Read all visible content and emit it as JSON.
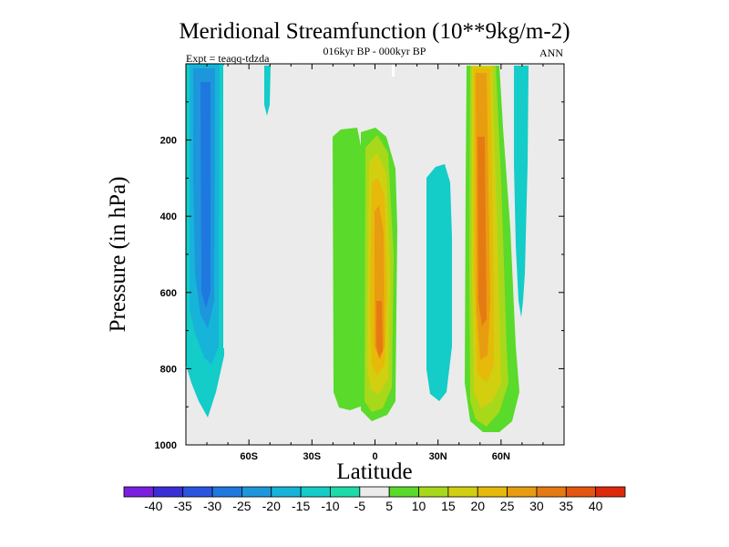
{
  "chart_data": {
    "type": "heatmap",
    "title": "Meridional Streamfunction (10**9kg/m-2)",
    "subtitle_center": "016kyr BP - 000kyr BP",
    "subtitle_left": "Expt = teaqq-tdzda",
    "subtitle_right": "ANN",
    "xlabel": "Latitude",
    "ylabel": "Pressure (in hPa)",
    "xlim": [
      -90,
      90
    ],
    "ylim": [
      0,
      1000
    ],
    "y_reversed": true,
    "x_ticks": [
      {
        "value": -60,
        "label": "60S"
      },
      {
        "value": -30,
        "label": "30S"
      },
      {
        "value": 0,
        "label": "0"
      },
      {
        "value": 30,
        "label": "30N"
      },
      {
        "value": 60,
        "label": "60N"
      }
    ],
    "y_ticks": [
      {
        "value": 200,
        "label": "200"
      },
      {
        "value": 400,
        "label": "400"
      },
      {
        "value": 600,
        "label": "600"
      },
      {
        "value": 800,
        "label": "800"
      },
      {
        "value": 1000,
        "label": "1000"
      }
    ],
    "colorbar": {
      "levels": [
        -40,
        -35,
        -30,
        -25,
        -20,
        -15,
        -10,
        -5,
        5,
        10,
        15,
        20,
        25,
        30,
        35,
        40
      ],
      "level_labels": [
        "-40",
        "-35",
        "-30",
        "-25",
        "-20",
        "-15",
        "-10",
        "-5",
        "5",
        "10",
        "15",
        "20",
        "25",
        "30",
        "35",
        "40"
      ],
      "colors": [
        "#7a1fe0",
        "#3a2fd6",
        "#2a55e0",
        "#1f78e0",
        "#1d96dc",
        "#15b4d8",
        "#14ccc8",
        "#1ddba8",
        "#ebebeb",
        "#5ada2a",
        "#a8d81a",
        "#d2cf10",
        "#e6b90a",
        "#e89c10",
        "#e67a12",
        "#e45510",
        "#de2a0a"
      ]
    },
    "features": [
      {
        "name": "sh-polar-negative",
        "lat_range": [
          -90,
          -67
        ],
        "p_range": [
          20,
          930
        ],
        "min_value": -22,
        "color_classes": [
          "-10 to -5",
          "-15 to -10",
          "-20 to -15"
        ]
      },
      {
        "name": "sh-subpolar-strip",
        "lat_range": [
          -53,
          -48
        ],
        "p_range": [
          10,
          120
        ],
        "min_value": -8
      },
      {
        "name": "tropical-positive-left",
        "lat_range": [
          -20,
          -5
        ],
        "p_range": [
          150,
          960
        ],
        "max_value": 15
      },
      {
        "name": "equatorial-positive",
        "lat_range": [
          -7,
          8
        ],
        "p_range": [
          140,
          960
        ],
        "max_value": 32
      },
      {
        "name": "nh-subtropical-negative",
        "lat_range": [
          25,
          38
        ],
        "p_range": [
          270,
          910
        ],
        "min_value": -17
      },
      {
        "name": "nh-midlat-positive",
        "lat_range": [
          45,
          68
        ],
        "p_range": [
          10,
          975
        ],
        "max_value": 32
      },
      {
        "name": "nh-subpolar-negative",
        "lat_range": [
          67,
          74
        ],
        "p_range": [
          10,
          670
        ],
        "min_value": -12
      }
    ]
  }
}
